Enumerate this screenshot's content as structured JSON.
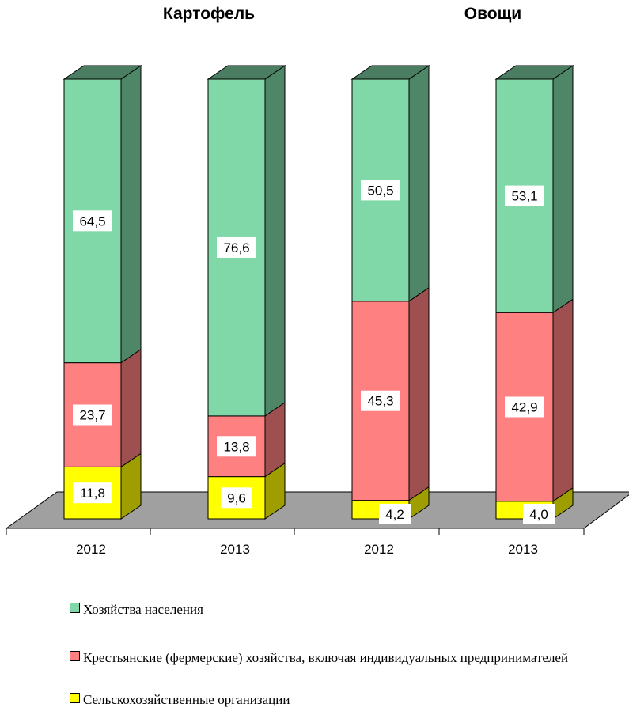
{
  "chart_data": {
    "type": "bar",
    "stacked": true,
    "three_d": true,
    "groups": [
      {
        "title": "Картофель",
        "categories": [
          "2012",
          "2013"
        ]
      },
      {
        "title": "Овощи",
        "categories": [
          "2012",
          "2013"
        ]
      }
    ],
    "categories": [
      "2012",
      "2013",
      "2012",
      "2013"
    ],
    "series": [
      {
        "name": "Сельскохозяйственные организации",
        "values": [
          11.8,
          9.6,
          4.2,
          4.0
        ],
        "labels": [
          "11,8",
          "9,6",
          "4,2",
          "4,0"
        ],
        "color": "#ffff00"
      },
      {
        "name": "Крестьянские (фермерские) хозяйства, включая индивидуальных предпринимателей",
        "values": [
          23.7,
          13.8,
          45.3,
          42.9
        ],
        "labels": [
          "23,7",
          "13,8",
          "45,3",
          "42,9"
        ],
        "color": "#ff8080"
      },
      {
        "name": "Хозяйства населения",
        "values": [
          64.5,
          76.6,
          50.5,
          53.1
        ],
        "labels": [
          "64,5",
          "76,6",
          "50,5",
          "53,1"
        ],
        "color": "#80d8a8"
      }
    ],
    "ylim": [
      0,
      100
    ],
    "legend_position": "bottom",
    "grid": false
  },
  "legend": {
    "items": [
      {
        "label": "Хозяйства населения",
        "color": "#80d8a8"
      },
      {
        "label": "Крестьянские (фермерские) хозяйства, включая индивидуальных предпринимателей",
        "color": "#ff8080"
      },
      {
        "label": "Сельскохозяйственные организации",
        "color": "#ffff00"
      }
    ]
  }
}
